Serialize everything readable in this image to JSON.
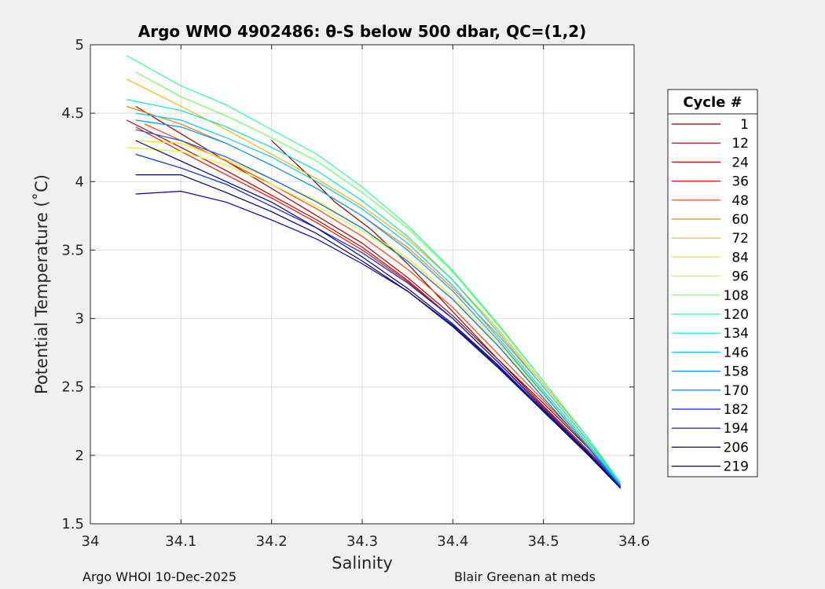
{
  "chart_data": {
    "type": "line",
    "title": "Argo WMO 4902486: θ-S below 500 dbar,  QC=(1,2)",
    "xlabel": "Salinity",
    "ylabel": "Potential Temperature (˚C)",
    "xlim": [
      34.0,
      34.6
    ],
    "ylim": [
      1.5,
      5.0
    ],
    "x_ticks": [
      "34",
      "34.1",
      "34.2",
      "34.3",
      "34.4",
      "34.5",
      "34.6"
    ],
    "y_ticks": [
      "1.5",
      "2",
      "2.5",
      "3",
      "3.5",
      "4",
      "4.5",
      "5"
    ],
    "grid": true,
    "legend_title": "Cycle #",
    "legend_position": "right",
    "series": [
      {
        "name": "1",
        "color": "#7f0000",
        "salinity": [
          34.2,
          34.24,
          34.27,
          34.31,
          34.35,
          34.4,
          34.45,
          34.5,
          34.55,
          34.585
        ],
        "theta": [
          4.3,
          4.05,
          3.85,
          3.65,
          3.4,
          3.05,
          2.7,
          2.38,
          2.05,
          1.77
        ]
      },
      {
        "name": "12",
        "color": "#a00000",
        "salinity": [
          34.05,
          34.1,
          34.15,
          34.2,
          34.25,
          34.3,
          34.35,
          34.4,
          34.45,
          34.5,
          34.55,
          34.585
        ],
        "theta": [
          4.55,
          4.35,
          4.15,
          3.95,
          3.75,
          3.55,
          3.3,
          3.02,
          2.7,
          2.36,
          2.03,
          1.77
        ]
      },
      {
        "name": "24",
        "color": "#c40000",
        "salinity": [
          34.04,
          34.1,
          34.15,
          34.2,
          34.25,
          34.3,
          34.35,
          34.4,
          34.45,
          34.5,
          34.55,
          34.585
        ],
        "theta": [
          4.45,
          4.25,
          4.08,
          3.9,
          3.72,
          3.52,
          3.28,
          3.0,
          2.68,
          2.35,
          2.02,
          1.77
        ]
      },
      {
        "name": "36",
        "color": "#e81000",
        "salinity": [
          34.05,
          34.1,
          34.15,
          34.2,
          34.25,
          34.3,
          34.35,
          34.4,
          34.45,
          34.5,
          34.55,
          34.585
        ],
        "theta": [
          4.4,
          4.22,
          4.05,
          3.88,
          3.7,
          3.5,
          3.27,
          3.0,
          2.68,
          2.35,
          2.03,
          1.78
        ]
      },
      {
        "name": "48",
        "color": "#ff4000",
        "salinity": [
          34.06,
          34.1,
          34.15,
          34.2,
          34.25,
          34.3,
          34.35,
          34.4,
          34.45,
          34.5,
          34.55,
          34.585
        ],
        "theta": [
          4.42,
          4.3,
          4.15,
          3.98,
          3.8,
          3.6,
          3.36,
          3.08,
          2.74,
          2.4,
          2.06,
          1.79
        ]
      },
      {
        "name": "60",
        "color": "#ff7a00",
        "salinity": [
          34.04,
          34.1,
          34.15,
          34.2,
          34.25,
          34.3,
          34.35,
          34.4,
          34.45,
          34.5,
          34.55,
          34.585
        ],
        "theta": [
          4.55,
          4.42,
          4.28,
          4.12,
          3.95,
          3.75,
          3.52,
          3.22,
          2.88,
          2.5,
          2.1,
          1.8
        ]
      },
      {
        "name": "72",
        "color": "#ffb000",
        "salinity": [
          34.04,
          34.1,
          34.15,
          34.2,
          34.25,
          34.3,
          34.35,
          34.4,
          34.45,
          34.5,
          34.55,
          34.585
        ],
        "theta": [
          4.75,
          4.55,
          4.38,
          4.2,
          4.02,
          3.82,
          3.58,
          3.28,
          2.92,
          2.52,
          2.12,
          1.8
        ]
      },
      {
        "name": "84",
        "color": "#ffe600",
        "salinity": [
          34.05,
          34.1,
          34.15,
          34.2,
          34.25,
          34.3,
          34.35,
          34.4,
          34.45,
          34.5,
          34.55,
          34.585
        ],
        "theta": [
          4.3,
          4.28,
          4.16,
          4.02,
          3.86,
          3.66,
          3.44,
          3.16,
          2.82,
          2.45,
          2.07,
          1.79
        ]
      },
      {
        "name": "96",
        "color": "#c8ff2e",
        "salinity": [
          34.04,
          34.1,
          34.15,
          34.2,
          34.25,
          34.3,
          34.35,
          34.4,
          34.45,
          34.5,
          34.55,
          34.585
        ],
        "theta": [
          4.25,
          4.22,
          4.12,
          3.98,
          3.82,
          3.64,
          3.42,
          3.14,
          2.8,
          2.44,
          2.06,
          1.78
        ]
      },
      {
        "name": "108",
        "color": "#6cff5c",
        "salinity": [
          34.05,
          34.1,
          34.15,
          34.2,
          34.25,
          34.3,
          34.35,
          34.4,
          34.45,
          34.5,
          34.55,
          34.585
        ],
        "theta": [
          4.8,
          4.62,
          4.48,
          4.32,
          4.15,
          3.92,
          3.66,
          3.34,
          2.95,
          2.54,
          2.12,
          1.8
        ]
      },
      {
        "name": "120",
        "color": "#2eff95",
        "salinity": [
          34.04,
          34.1,
          34.15,
          34.2,
          34.25,
          34.3,
          34.35,
          34.4,
          34.45,
          34.5,
          34.55,
          34.585
        ],
        "theta": [
          4.92,
          4.7,
          4.56,
          4.38,
          4.2,
          3.96,
          3.68,
          3.35,
          2.96,
          2.54,
          2.12,
          1.8
        ]
      },
      {
        "name": "134",
        "color": "#00e6c4",
        "salinity": [
          34.04,
          34.1,
          34.15,
          34.2,
          34.25,
          34.3,
          34.35,
          34.4,
          34.45,
          34.5,
          34.55,
          34.585
        ],
        "theta": [
          4.6,
          4.52,
          4.4,
          4.25,
          4.08,
          3.86,
          3.6,
          3.28,
          2.9,
          2.5,
          2.1,
          1.79
        ]
      },
      {
        "name": "146",
        "color": "#00c8ff",
        "salinity": [
          34.05,
          34.1,
          34.15,
          34.2,
          34.25,
          34.3,
          34.35,
          34.4,
          34.45,
          34.5,
          34.55,
          34.585
        ],
        "theta": [
          4.5,
          4.45,
          4.32,
          4.18,
          4.0,
          3.8,
          3.55,
          3.24,
          2.86,
          2.47,
          2.08,
          1.78
        ]
      },
      {
        "name": "158",
        "color": "#0096ff",
        "salinity": [
          34.05,
          34.1,
          34.15,
          34.2,
          34.25,
          34.3,
          34.35,
          34.4,
          34.45,
          34.5,
          34.55,
          34.585
        ],
        "theta": [
          4.45,
          4.4,
          4.28,
          4.12,
          3.95,
          3.75,
          3.5,
          3.2,
          2.84,
          2.45,
          2.06,
          1.78
        ]
      },
      {
        "name": "170",
        "color": "#0060ff",
        "salinity": [
          34.05,
          34.1,
          34.15,
          34.2,
          34.25,
          34.3,
          34.35,
          34.4,
          34.45,
          34.5,
          34.55,
          34.585
        ],
        "theta": [
          4.38,
          4.3,
          4.18,
          4.02,
          3.85,
          3.66,
          3.42,
          3.14,
          2.8,
          2.42,
          2.05,
          1.77
        ]
      },
      {
        "name": "182",
        "color": "#0024e0",
        "salinity": [
          34.05,
          34.1,
          34.15,
          34.2,
          34.25,
          34.3,
          34.35,
          34.4,
          34.45,
          34.5,
          34.55,
          34.585
        ],
        "theta": [
          4.2,
          4.1,
          3.98,
          3.82,
          3.66,
          3.48,
          3.26,
          3.0,
          2.68,
          2.34,
          2.02,
          1.77
        ]
      },
      {
        "name": "194",
        "color": "#0000b4",
        "salinity": [
          34.05,
          34.1,
          34.15,
          34.2,
          34.25,
          34.3,
          34.35,
          34.4,
          34.45,
          34.5,
          34.55,
          34.585
        ],
        "theta": [
          3.91,
          3.93,
          3.85,
          3.72,
          3.58,
          3.4,
          3.2,
          2.95,
          2.65,
          2.32,
          2.0,
          1.76
        ]
      },
      {
        "name": "206",
        "color": "#000080",
        "salinity": [
          34.05,
          34.1,
          34.15,
          34.2,
          34.25,
          34.3,
          34.35,
          34.4,
          34.45,
          34.5,
          34.55,
          34.585
        ],
        "theta": [
          4.3,
          4.15,
          4.0,
          3.85,
          3.66,
          3.45,
          3.22,
          2.96,
          2.66,
          2.33,
          2.01,
          1.76
        ]
      },
      {
        "name": "219",
        "color": "#00005c",
        "salinity": [
          34.05,
          34.1,
          34.15,
          34.2,
          34.25,
          34.3,
          34.35,
          34.4,
          34.45,
          34.5,
          34.55,
          34.585
        ],
        "theta": [
          4.05,
          4.05,
          3.92,
          3.78,
          3.62,
          3.42,
          3.2,
          2.94,
          2.64,
          2.32,
          2.0,
          1.76
        ]
      }
    ]
  },
  "footer": {
    "left": "Argo WHOI 10-Dec-2025",
    "right": "Blair Greenan at meds"
  }
}
